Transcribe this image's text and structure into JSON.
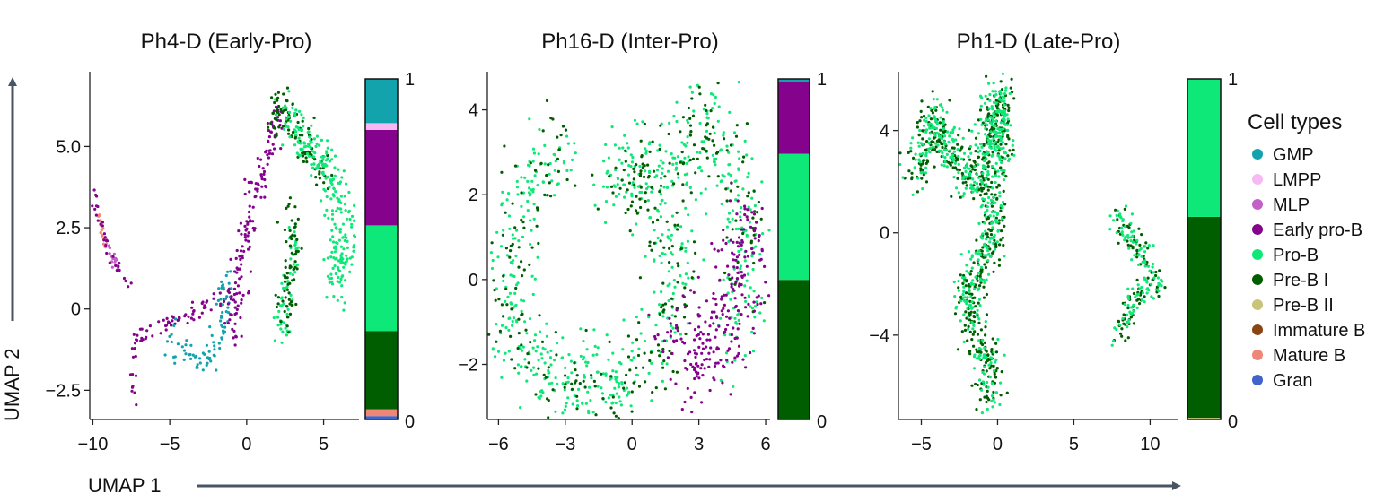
{
  "figure": {
    "x_axis_title": "UMAP 1",
    "y_axis_title": "UMAP 2",
    "legend_title": "Cell types"
  },
  "colors": {
    "GMP": "#13a3ad",
    "LMPP": "#f7b8f3",
    "MLP": "#c35fc7",
    "Early pro-B": "#84028c",
    "Pro-B": "#0ee879",
    "Pre-B I": "#005d00",
    "Pre-B II": "#c8c47a",
    "Immature B": "#8b4513",
    "Mature B": "#ef8778",
    "Gran": "#4064c8",
    "axis_arrow": "#4a5563"
  },
  "legend": [
    {
      "label": "GMP",
      "color": "#13a3ad"
    },
    {
      "label": "LMPP",
      "color": "#f7b8f3"
    },
    {
      "label": "MLP",
      "color": "#c35fc7"
    },
    {
      "label": "Early pro-B",
      "color": "#84028c"
    },
    {
      "label": "Pro-B",
      "color": "#0ee879"
    },
    {
      "label": "Pre-B I",
      "color": "#005d00"
    },
    {
      "label": "Pre-B II",
      "color": "#c8c47a"
    },
    {
      "label": "Immature B",
      "color": "#8b4513"
    },
    {
      "label": "Mature B",
      "color": "#ef8778"
    },
    {
      "label": "Gran",
      "color": "#4064c8"
    }
  ],
  "chart_data": [
    {
      "type": "scatter",
      "title": "Ph4-D (Early-Pro)",
      "xlim": [
        -10.2,
        7.3
      ],
      "ylim": [
        -3.4,
        7.3
      ],
      "xticks": [
        -10,
        -5,
        0,
        5
      ],
      "xtick_labels": [
        "−10",
        "−5",
        "0",
        "5"
      ],
      "yticks": [
        -2.5,
        0,
        2.5,
        5.0
      ],
      "ytick_labels": [
        "−2.5",
        "0",
        "2.5",
        "5.0"
      ],
      "regions": [
        {
          "type": "Early pro-B",
          "color": "#84028c",
          "n": 80,
          "spread": 0.15,
          "path": [
            [
              -7.5,
              -2.9
            ],
            [
              -7.3,
              -1.0
            ],
            [
              -6.0,
              -0.6
            ],
            [
              -4.5,
              -0.3
            ],
            [
              -3.0,
              0.0
            ],
            [
              -1.0,
              0.5
            ]
          ]
        },
        {
          "type": "GMP",
          "color": "#13a3ad",
          "n": 90,
          "spread": 0.25,
          "path": [
            [
              -5.0,
              -0.8
            ],
            [
              -4.0,
              -1.3
            ],
            [
              -3.0,
              -1.5
            ],
            [
              -2.0,
              -1.5
            ],
            [
              -1.5,
              -0.5
            ],
            [
              -1.5,
              0.5
            ],
            [
              -1.0,
              0.9
            ]
          ]
        },
        {
          "type": "Early pro-B",
          "color": "#84028c",
          "n": 150,
          "spread": 0.25,
          "path": [
            [
              -1.0,
              -0.8
            ],
            [
              -0.5,
              0.5
            ],
            [
              -0.5,
              1.5
            ],
            [
              0,
              2.2
            ],
            [
              0.5,
              3.2
            ],
            [
              1.0,
              4.3
            ],
            [
              1.7,
              5.3
            ],
            [
              2.2,
              6.1
            ]
          ]
        },
        {
          "type": "Pre-B I",
          "color": "#005d00",
          "n": 100,
          "spread": 0.3,
          "path": [
            [
              1.7,
              5.5
            ],
            [
              2.2,
              6.5
            ],
            [
              2.5,
              6.3
            ],
            [
              3.0,
              5.5
            ],
            [
              4.0,
              5.0
            ],
            [
              5.0,
              4.0
            ]
          ]
        },
        {
          "type": "Pro-B",
          "color": "#0ee879",
          "n": 260,
          "spread": 0.4,
          "path": [
            [
              2.5,
              6.0
            ],
            [
              3.5,
              5.3
            ],
            [
              4.5,
              4.8
            ],
            [
              5.5,
              4.0
            ],
            [
              6.0,
              3.2
            ],
            [
              6.5,
              2.5
            ],
            [
              6.0,
              1.5
            ],
            [
              5.5,
              0.8
            ]
          ]
        },
        {
          "type": "Pro-B",
          "color": "#0ee879",
          "n": 60,
          "spread": 0.25,
          "path": [
            [
              3.0,
              2.5
            ],
            [
              3.0,
              1.5
            ],
            [
              2.5,
              0.5
            ],
            [
              2.3,
              -0.5
            ],
            [
              2.5,
              -0.8
            ]
          ]
        },
        {
          "type": "Pre-B I",
          "color": "#005d00",
          "n": 70,
          "spread": 0.3,
          "path": [
            [
              3.2,
              2.8
            ],
            [
              3.0,
              1.5
            ],
            [
              2.6,
              0.5
            ],
            [
              2.5,
              -0.5
            ],
            [
              2.8,
              3.5
            ]
          ]
        },
        {
          "type": "Mature B",
          "color": "#ef8778",
          "n": 20,
          "spread": 0.08,
          "path": [
            [
              -9.7,
              3.0
            ],
            [
              -9.5,
              2.5
            ],
            [
              -9.1,
              1.9
            ]
          ]
        },
        {
          "type": "MLP",
          "color": "#c35fc7",
          "n": 20,
          "spread": 0.08,
          "path": [
            [
              -9.3,
              2.2
            ],
            [
              -8.8,
              1.7
            ],
            [
              -8.3,
              1.2
            ]
          ]
        },
        {
          "type": "Early pro-B",
          "color": "#84028c",
          "n": 30,
          "spread": 0.1,
          "path": [
            [
              -9.8,
              3.5
            ],
            [
              -9.5,
              2.5
            ],
            [
              -8.8,
              1.6
            ],
            [
              -8.0,
              1.0
            ],
            [
              -7.5,
              0.6
            ]
          ]
        }
      ],
      "bar": {
        "tick_top": "1",
        "tick_bottom": "0",
        "segments": [
          {
            "type": "Gran",
            "value": 0.01
          },
          {
            "type": "Mature B",
            "value": 0.02
          },
          {
            "type": "Pre-B I",
            "value": 0.23
          },
          {
            "type": "Pro-B",
            "value": 0.31
          },
          {
            "type": "Early pro-B",
            "value": 0.28
          },
          {
            "type": "LMPP",
            "value": 0.02
          },
          {
            "type": "GMP",
            "value": 0.13
          }
        ]
      }
    },
    {
      "type": "scatter",
      "title": "Ph16-D (Inter-Pro)",
      "xlim": [
        -6.5,
        6.2
      ],
      "ylim": [
        -3.3,
        4.9
      ],
      "xticks": [
        -6,
        -3,
        0,
        3,
        6
      ],
      "xtick_labels": [
        "−6",
        "−3",
        "0",
        "3",
        "6"
      ],
      "yticks": [
        -2,
        0,
        2,
        4
      ],
      "ytick_labels": [
        "−2",
        "0",
        "2",
        "4"
      ],
      "regions": [
        {
          "type": "Pro-B",
          "color": "#0ee879",
          "n": 700,
          "spread": 0.55,
          "path": [
            [
              -3.0,
              3.0
            ],
            [
              -5.0,
              2.0
            ],
            [
              -5.5,
              0.5
            ],
            [
              -5.5,
              -0.8
            ],
            [
              -4.5,
              -2.0
            ],
            [
              -3.0,
              -2.7
            ],
            [
              -1.0,
              -2.6
            ],
            [
              1.0,
              -1.8
            ],
            [
              2.0,
              -0.5
            ],
            [
              2.0,
              1.0
            ],
            [
              0.5,
              2.0
            ],
            [
              -1.0,
              2.7
            ],
            [
              1.0,
              2.6
            ],
            [
              2.5,
              2.5
            ],
            [
              3.0,
              4.0
            ],
            [
              4.0,
              3.0
            ],
            [
              5.0,
              2.0
            ],
            [
              5.0,
              0.0
            ],
            [
              4.5,
              -1.5
            ]
          ]
        },
        {
          "type": "Pre-B I",
          "color": "#005d00",
          "n": 350,
          "spread": 0.55,
          "path": [
            [
              -3.0,
              3.0
            ],
            [
              -5.0,
              2.0
            ],
            [
              -5.5,
              0.5
            ],
            [
              -5.5,
              -0.8
            ],
            [
              -4.5,
              -2.0
            ],
            [
              -3.0,
              -2.7
            ],
            [
              -1.0,
              -2.6
            ],
            [
              1.0,
              -1.8
            ],
            [
              2.0,
              -0.5
            ],
            [
              2.0,
              1.0
            ],
            [
              0.5,
              2.0
            ],
            [
              -1.0,
              2.7
            ],
            [
              2.5,
              2.5
            ],
            [
              3.0,
              4.0
            ],
            [
              4.0,
              3.0
            ],
            [
              5.0,
              2.0
            ],
            [
              5.0,
              0.0
            ]
          ]
        },
        {
          "type": "Early pro-B",
          "color": "#84028c",
          "n": 260,
          "spread": 0.45,
          "path": [
            [
              1.5,
              -1.2
            ],
            [
              2.5,
              -1.8
            ],
            [
              3.5,
              -2.0
            ],
            [
              4.5,
              -1.5
            ],
            [
              5.0,
              -0.5
            ],
            [
              5.2,
              0.8
            ],
            [
              5.3,
              1.6
            ],
            [
              2.5,
              -2.7
            ]
          ]
        }
      ],
      "bar": {
        "tick_top": "1",
        "tick_bottom": "0",
        "segments": [
          {
            "type": "Pre-B I",
            "value": 0.41
          },
          {
            "type": "Pro-B",
            "value": 0.37
          },
          {
            "type": "Early pro-B",
            "value": 0.21
          },
          {
            "type": "GMP",
            "value": 0.01
          }
        ]
      }
    },
    {
      "type": "scatter",
      "title": "Ph1-D (Late-Pro)",
      "xlim": [
        -6.5,
        11.8
      ],
      "ylim": [
        -7.3,
        6.3
      ],
      "xticks": [
        -5,
        0,
        5,
        10
      ],
      "xtick_labels": [
        "−5",
        "0",
        "5",
        "10"
      ],
      "yticks": [
        -4,
        0,
        4
      ],
      "ytick_labels": [
        "−4",
        "0",
        "4"
      ],
      "regions": [
        {
          "type": "Pre-B I",
          "color": "#005d00",
          "n": 550,
          "spread": 0.45,
          "path": [
            [
              -5.5,
              2.0
            ],
            [
              -5.0,
              3.0
            ],
            [
              -4.2,
              4.5
            ],
            [
              -3.5,
              3.8
            ],
            [
              -2.5,
              2.5
            ],
            [
              -1.5,
              2.0
            ],
            [
              -0.5,
              4.0
            ],
            [
              0,
              5.5
            ],
            [
              0.3,
              3.0
            ],
            [
              -0.5,
              1.5
            ],
            [
              0,
              0.5
            ],
            [
              -1.0,
              -1.0
            ],
            [
              -2.0,
              -2.0
            ],
            [
              -1.8,
              -3.5
            ],
            [
              -1.0,
              -4.5
            ],
            [
              -0.5,
              -5.5
            ],
            [
              -0.3,
              -6.5
            ]
          ]
        },
        {
          "type": "Pro-B",
          "color": "#0ee879",
          "n": 550,
          "spread": 0.45,
          "path": [
            [
              -5.5,
              2.0
            ],
            [
              -5.0,
              3.0
            ],
            [
              -4.2,
              4.5
            ],
            [
              -3.5,
              3.8
            ],
            [
              -2.5,
              2.5
            ],
            [
              -1.5,
              2.0
            ],
            [
              -0.5,
              4.0
            ],
            [
              0,
              5.5
            ],
            [
              0.3,
              3.0
            ],
            [
              -0.5,
              1.5
            ],
            [
              0,
              0.5
            ],
            [
              -1.0,
              -1.0
            ],
            [
              -2.0,
              -2.0
            ],
            [
              -1.8,
              -3.5
            ],
            [
              -1.0,
              -4.5
            ],
            [
              -0.5,
              -5.5
            ],
            [
              -0.3,
              -6.5
            ]
          ]
        },
        {
          "type": "Pre-B I",
          "color": "#005d00",
          "n": 90,
          "spread": 0.3,
          "path": [
            [
              7.8,
              0.8
            ],
            [
              8.8,
              -0.2
            ],
            [
              9.8,
              -1.2
            ],
            [
              10.5,
              -2.0
            ],
            [
              9.0,
              -2.5
            ],
            [
              8.3,
              -3.5
            ],
            [
              7.8,
              -4.3
            ]
          ]
        },
        {
          "type": "Pro-B",
          "color": "#0ee879",
          "n": 110,
          "spread": 0.3,
          "path": [
            [
              7.8,
              0.8
            ],
            [
              8.8,
              -0.2
            ],
            [
              9.8,
              -1.2
            ],
            [
              10.5,
              -2.0
            ],
            [
              9.0,
              -2.5
            ],
            [
              8.3,
              -3.5
            ],
            [
              7.8,
              -4.3
            ]
          ]
        }
      ],
      "bar": {
        "tick_top": "1",
        "tick_bottom": "0",
        "segments": [
          {
            "type": "Pre-B II",
            "value": 0.005
          },
          {
            "type": "Pre-B I",
            "value": 0.59
          },
          {
            "type": "Pro-B",
            "value": 0.405
          }
        ]
      }
    }
  ]
}
